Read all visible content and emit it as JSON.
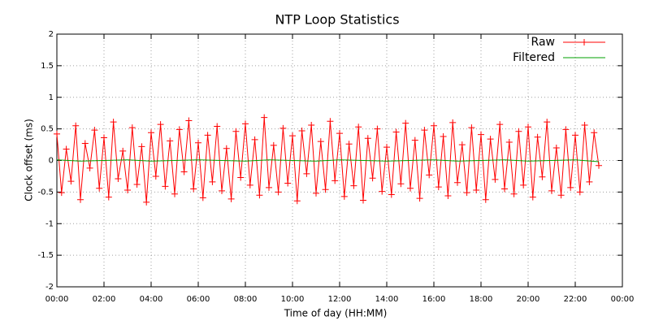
{
  "chart_data": {
    "type": "line",
    "title": "NTP Loop Statistics",
    "x_label": "Time of day (HH:MM)",
    "y_label": "Clock offset (ms)",
    "xlim": [
      0,
      24
    ],
    "xticks": [
      {
        "value": 0,
        "label": "00:00"
      },
      {
        "value": 2,
        "label": "02:00"
      },
      {
        "value": 4,
        "label": "04:00"
      },
      {
        "value": 6,
        "label": "06:00"
      },
      {
        "value": 8,
        "label": "08:00"
      },
      {
        "value": 10,
        "label": "10:00"
      },
      {
        "value": 12,
        "label": "12:00"
      },
      {
        "value": 14,
        "label": "14:00"
      },
      {
        "value": 16,
        "label": "16:00"
      },
      {
        "value": 18,
        "label": "18:00"
      },
      {
        "value": 20,
        "label": "20:00"
      },
      {
        "value": 22,
        "label": "22:00"
      },
      {
        "value": 24,
        "label": "00:00"
      }
    ],
    "ylim": [
      -2,
      2
    ],
    "yticks": [
      -2,
      -1.5,
      -1,
      -0.5,
      0,
      0.5,
      1,
      1.5,
      2
    ],
    "grid": true,
    "legend": "top-right",
    "series": [
      {
        "name": "Raw",
        "color": "#ff0000",
        "marker": "+",
        "x": [
          0,
          0.2,
          0.4,
          0.6,
          0.8,
          1,
          1.2,
          1.4,
          1.6,
          1.8,
          2,
          2.2,
          2.4,
          2.6,
          2.8,
          3,
          3.2,
          3.4,
          3.6,
          3.8,
          4,
          4.2,
          4.4,
          4.6,
          4.8,
          5,
          5.2,
          5.4,
          5.6,
          5.8,
          6,
          6.2,
          6.4,
          6.6,
          6.8,
          7,
          7.2,
          7.4,
          7.6,
          7.8,
          8,
          8.2,
          8.4,
          8.6,
          8.8,
          9,
          9.2,
          9.4,
          9.6,
          9.8,
          10,
          10.2,
          10.4,
          10.6,
          10.8,
          11,
          11.2,
          11.4,
          11.6,
          11.8,
          12,
          12.2,
          12.4,
          12.6,
          12.8,
          13,
          13.2,
          13.4,
          13.6,
          13.8,
          14,
          14.2,
          14.4,
          14.6,
          14.8,
          15,
          15.2,
          15.4,
          15.6,
          15.8,
          16,
          16.2,
          16.4,
          16.6,
          16.8,
          17,
          17.2,
          17.4,
          17.6,
          17.8,
          18,
          18.2,
          18.4,
          18.6,
          18.8,
          19,
          19.2,
          19.4,
          19.6,
          19.8,
          20,
          20.2,
          20.4,
          20.6,
          20.8,
          21,
          21.2,
          21.4,
          21.6,
          21.8,
          22,
          22.2,
          22.4,
          22.6,
          22.8,
          23
        ],
        "values": [
          0.42,
          -0.51,
          0.18,
          -0.33,
          0.55,
          -0.62,
          0.27,
          -0.12,
          0.48,
          -0.44,
          0.36,
          -0.58,
          0.61,
          -0.29,
          0.15,
          -0.47,
          0.52,
          -0.38,
          0.22,
          -0.66,
          0.44,
          -0.25,
          0.57,
          -0.41,
          0.31,
          -0.53,
          0.49,
          -0.18,
          0.63,
          -0.45,
          0.28,
          -0.59,
          0.4,
          -0.34,
          0.54,
          -0.48,
          0.19,
          -0.61,
          0.46,
          -0.27,
          0.58,
          -0.39,
          0.33,
          -0.55,
          0.68,
          -0.43,
          0.24,
          -0.5,
          0.51,
          -0.36,
          0.39,
          -0.64,
          0.47,
          -0.21,
          0.56,
          -0.52,
          0.3,
          -0.46,
          0.62,
          -0.32,
          0.43,
          -0.57,
          0.26,
          -0.4,
          0.53,
          -0.63,
          0.35,
          -0.28,
          0.5,
          -0.49,
          0.21,
          -0.54,
          0.45,
          -0.37,
          0.59,
          -0.44,
          0.32,
          -0.6,
          0.48,
          -0.23,
          0.55,
          -0.42,
          0.38,
          -0.56,
          0.6,
          -0.35,
          0.25,
          -0.51,
          0.52,
          -0.47,
          0.41,
          -0.62,
          0.34,
          -0.3,
          0.57,
          -0.45,
          0.29,
          -0.53,
          0.46,
          -0.39,
          0.53,
          -0.58,
          0.37,
          -0.26,
          0.61,
          -0.48,
          0.2,
          -0.55,
          0.49,
          -0.43,
          0.4,
          -0.5,
          0.56,
          -0.34,
          0.44,
          -0.08
        ]
      },
      {
        "name": "Filtered",
        "color": "#00a000",
        "x": [
          0,
          1,
          2,
          3,
          4,
          5,
          6,
          7,
          8,
          9,
          10,
          11,
          12,
          13,
          14,
          15,
          16,
          17,
          18,
          19,
          20,
          21,
          22,
          23
        ],
        "values": [
          0.01,
          -0.01,
          0,
          0.01,
          -0.01,
          0,
          0.01,
          0,
          -0.01,
          0.01,
          0,
          -0.01,
          0.01,
          0,
          -0.01,
          0,
          0.01,
          -0.01,
          0,
          0.01,
          -0.01,
          0,
          0.01,
          -0.02
        ]
      }
    ]
  }
}
